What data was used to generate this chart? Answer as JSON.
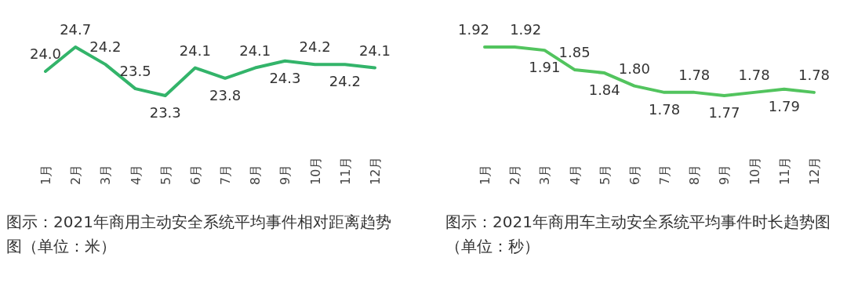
{
  "chart_data": [
    {
      "type": "line",
      "title": "图示：2021年商用主动安全系统平均事件相对距离趋势图（单位：米）",
      "categories": [
        "1月",
        "2月",
        "3月",
        "4月",
        "5月",
        "6月",
        "7月",
        "8月",
        "9月",
        "10月",
        "11月",
        "12月"
      ],
      "series": [
        {
          "color": "#33b46a",
          "values": [
            24.0,
            24.7,
            24.2,
            23.5,
            23.3,
            24.1,
            23.8,
            24.1,
            24.3,
            24.2,
            24.2,
            24.1
          ],
          "value_labels": [
            "24.0",
            "24.7",
            "24.2",
            "23.5",
            "23.3",
            "24.1",
            "23.8",
            "24.1",
            "24.3",
            "24.2",
            "24.2",
            "24.1"
          ]
        }
      ],
      "tick_labels": "x"
    },
    {
      "type": "line",
      "title": "图示：2021年商用车主动安全系统平均事件时长趋势图（单位：秒）",
      "categories": [
        "1月",
        "2月",
        "3月",
        "4月",
        "5月",
        "6月",
        "7月",
        "8月",
        "9月",
        "10月",
        "11月",
        "12月"
      ],
      "series": [
        {
          "color": "#52c45e",
          "values": [
            1.92,
            1.92,
            1.91,
            1.85,
            1.84,
            1.8,
            1.78,
            1.78,
            1.77,
            1.78,
            1.79,
            1.78
          ],
          "value_labels": [
            "1.92",
            "1.92",
            "1.91",
            "1.85",
            "1.84",
            "1.80",
            "1.78",
            "1.78",
            "1.77",
            "1.78",
            "1.79",
            "1.78"
          ]
        }
      ],
      "tick_labels": "x"
    }
  ]
}
